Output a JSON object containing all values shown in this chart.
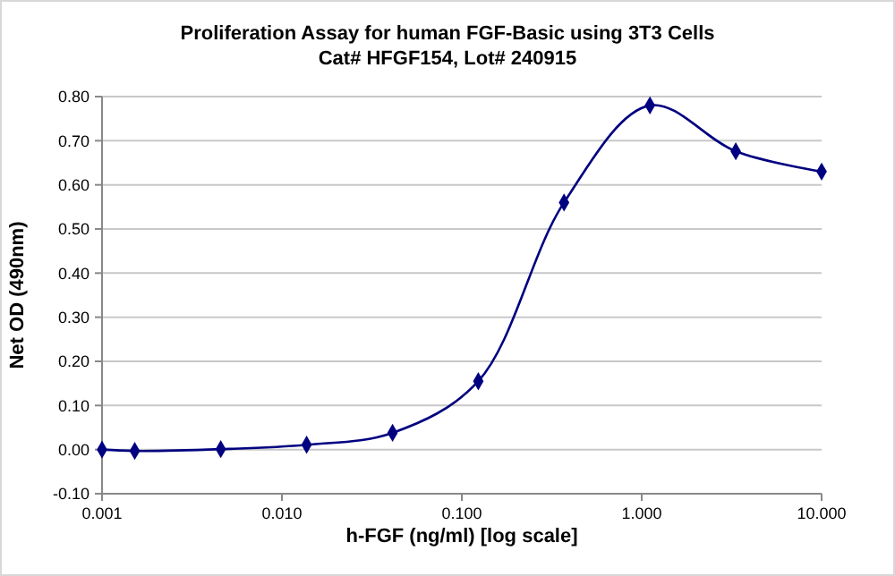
{
  "chart_data": {
    "type": "line",
    "title": "Proliferation Assay for human FGF-Basic using 3T3 Cells",
    "subtitle": "Cat# HFGF154, Lot# 240915",
    "xlabel": "h-FGF (ng/ml) [log scale]",
    "ylabel": "Net OD (490nm)",
    "x": [
      0.001,
      0.00152,
      0.00457,
      0.01372,
      0.0412,
      0.1235,
      0.37,
      1.111,
      3.333,
      10
    ],
    "series": [
      {
        "color": "#000080",
        "values": [
          0.0,
          -0.003,
          0.001,
          0.011,
          0.038,
          0.155,
          0.56,
          0.78,
          0.676,
          0.63
        ]
      }
    ],
    "log": "x",
    "xlim": [
      0.001,
      10
    ],
    "xticks": [
      {
        "value": 0.001,
        "label": "0.001"
      },
      {
        "value": 0.01,
        "label": "0.010"
      },
      {
        "value": 0.1,
        "label": "0.100"
      },
      {
        "value": 1,
        "label": "1.000"
      },
      {
        "value": 10,
        "label": "10.000"
      }
    ],
    "ylim": [
      -0.1,
      0.8
    ],
    "yticks": [
      {
        "value": -0.1,
        "label": "-0.10"
      },
      {
        "value": 0,
        "label": "0.00"
      },
      {
        "value": 0.1,
        "label": "0.10"
      },
      {
        "value": 0.2,
        "label": "0.20"
      },
      {
        "value": 0.3,
        "label": "0.30"
      },
      {
        "value": 0.4,
        "label": "0.40"
      },
      {
        "value": 0.5,
        "label": "0.50"
      },
      {
        "value": 0.6,
        "label": "0.60"
      },
      {
        "value": 0.7,
        "label": "0.70"
      },
      {
        "value": 0.8,
        "label": "0.80"
      }
    ],
    "grid": "y",
    "marker": "diamond",
    "line_style": "solid"
  }
}
